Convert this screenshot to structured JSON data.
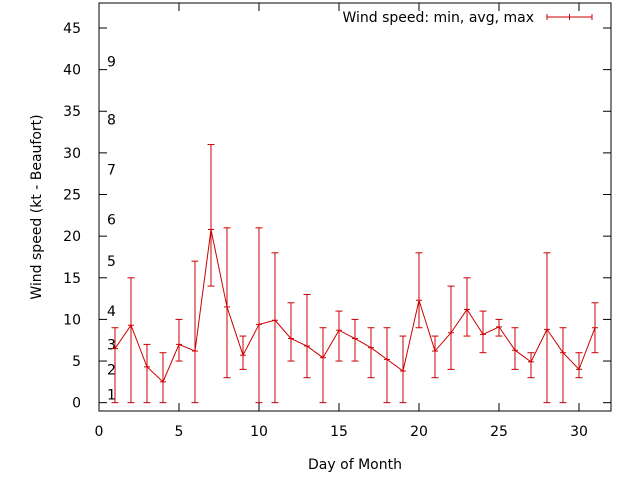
{
  "chart_data": {
    "type": "line",
    "title": "",
    "xlabel": "Day of Month",
    "ylabel": "Wind speed (kt - Beaufort)",
    "xlim": [
      0,
      32
    ],
    "ylim": [
      -1,
      48
    ],
    "xticks": [
      0,
      5,
      10,
      15,
      20,
      25,
      30
    ],
    "yticks": [
      0,
      5,
      10,
      15,
      20,
      25,
      30,
      35,
      40,
      45
    ],
    "beaufort_labels": [
      {
        "label": "1",
        "kt": 1
      },
      {
        "label": "2",
        "kt": 4
      },
      {
        "label": "3",
        "kt": 7
      },
      {
        "label": "4",
        "kt": 11
      },
      {
        "label": "5",
        "kt": 17
      },
      {
        "label": "6",
        "kt": 22
      },
      {
        "label": "7",
        "kt": 28
      },
      {
        "label": "8",
        "kt": 34
      },
      {
        "label": "9",
        "kt": 41
      }
    ],
    "grid": false,
    "legend_position": "top-right",
    "color": "#cc0000",
    "series": [
      {
        "name": "Wind speed: min, avg, max",
        "x": [
          1,
          2,
          3,
          4,
          5,
          6,
          7,
          8,
          9,
          10,
          11,
          12,
          13,
          14,
          15,
          16,
          17,
          18,
          19,
          20,
          21,
          22,
          23,
          24,
          25,
          26,
          27,
          28,
          29,
          30,
          31
        ],
        "avg": [
          6.5,
          9.3,
          4.3,
          2.5,
          7.0,
          6.2,
          20.8,
          11.5,
          5.7,
          9.4,
          9.9,
          7.7,
          6.8,
          5.4,
          8.7,
          7.7,
          6.6,
          5.2,
          3.8,
          12.3,
          6.2,
          8.4,
          11.2,
          8.2,
          9.1,
          6.3,
          4.9,
          8.8,
          6.0,
          4.0,
          9.0
        ],
        "min": [
          0,
          0,
          0,
          0,
          5,
          0,
          14,
          3,
          4,
          0,
          0,
          5,
          3,
          0,
          5,
          5,
          3,
          0,
          0,
          9,
          3,
          4,
          8,
          6,
          8,
          4,
          3,
          0,
          0,
          3,
          6
        ],
        "max": [
          9,
          15,
          7,
          6,
          10,
          17,
          31,
          21,
          8,
          21,
          18,
          12,
          13,
          9,
          11,
          10,
          9,
          9,
          8,
          18,
          8,
          14,
          15,
          11,
          10,
          9,
          6,
          18,
          9,
          6,
          12
        ]
      }
    ]
  }
}
